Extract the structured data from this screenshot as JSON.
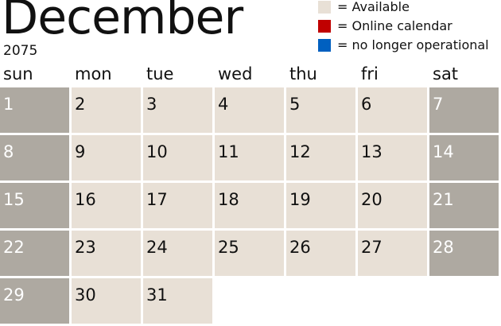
{
  "header": {
    "month": "December",
    "year": "2075"
  },
  "legend": [
    {
      "label": "= Available",
      "color": "#e8e0d6"
    },
    {
      "label": "= Online calendar",
      "color": "#c00000"
    },
    {
      "label": "= no longer operational",
      "color": "#0060c0"
    }
  ],
  "weekdays": [
    "sun",
    "mon",
    "tue",
    "wed",
    "thu",
    "fri",
    "sat"
  ],
  "weeks": [
    [
      "1",
      "2",
      "3",
      "4",
      "5",
      "6",
      "7"
    ],
    [
      "8",
      "9",
      "10",
      "11",
      "12",
      "13",
      "14"
    ],
    [
      "15",
      "16",
      "17",
      "18",
      "19",
      "20",
      "21"
    ],
    [
      "22",
      "23",
      "24",
      "25",
      "26",
      "27",
      "28"
    ],
    [
      "29",
      "30",
      "31"
    ]
  ],
  "colors": {
    "available": "#e8e0d6",
    "weekend": "#aea9a1"
  }
}
